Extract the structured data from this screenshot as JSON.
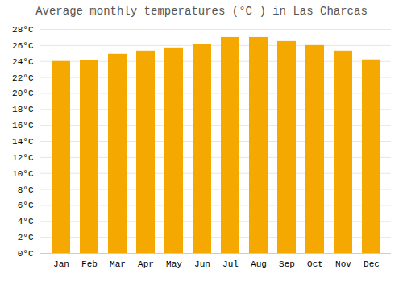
{
  "chart_data": {
    "type": "bar",
    "title": "Average monthly temperatures (°C ) in Las Charcas",
    "categories": [
      "Jan",
      "Feb",
      "Mar",
      "Apr",
      "May",
      "Jun",
      "Jul",
      "Aug",
      "Sep",
      "Oct",
      "Nov",
      "Dec"
    ],
    "values": [
      24.0,
      24.1,
      24.9,
      25.3,
      25.7,
      26.1,
      27.0,
      27.0,
      26.5,
      26.0,
      25.3,
      24.2
    ],
    "color": "#F5A800",
    "ylim": [
      0,
      28
    ],
    "yticks": [
      {
        "value": 0,
        "label": "0°C"
      },
      {
        "value": 2,
        "label": "2°C"
      },
      {
        "value": 4,
        "label": "4°C"
      },
      {
        "value": 6,
        "label": "6°C"
      },
      {
        "value": 8,
        "label": "8°C"
      },
      {
        "value": 10,
        "label": "10°C"
      },
      {
        "value": 12,
        "label": "12°C"
      },
      {
        "value": 14,
        "label": "14°C"
      },
      {
        "value": 16,
        "label": "16°C"
      },
      {
        "value": 18,
        "label": "18°C"
      },
      {
        "value": 20,
        "label": "20°C"
      },
      {
        "value": 22,
        "label": "22°C"
      },
      {
        "value": 24,
        "label": "24°C"
      },
      {
        "value": 26,
        "label": "26°C"
      },
      {
        "value": 28,
        "label": "28°C"
      }
    ],
    "grid": true
  }
}
